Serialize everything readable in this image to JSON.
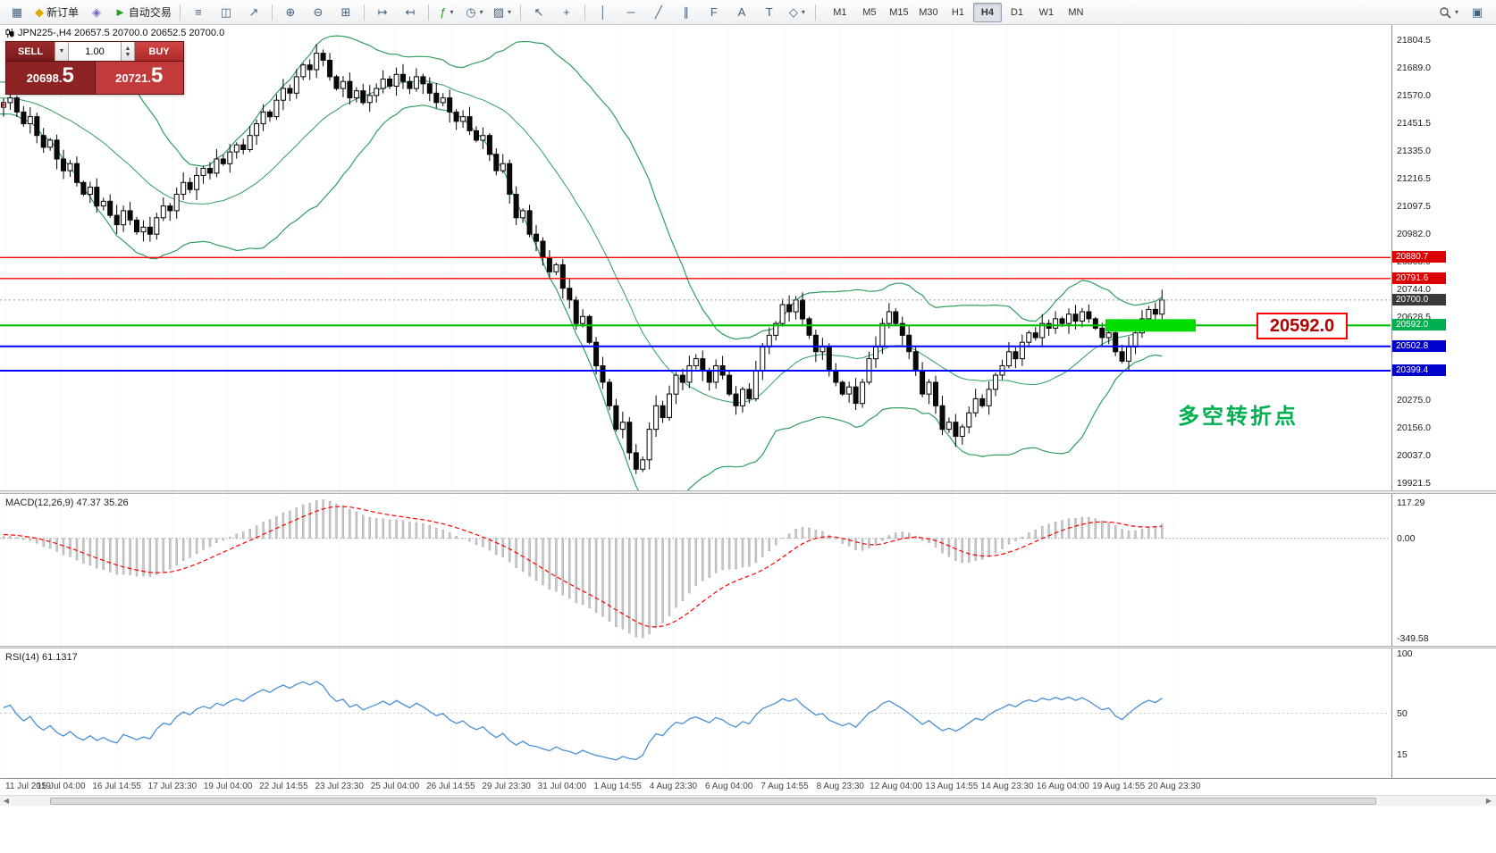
{
  "toolbar": {
    "items": [
      {
        "name": "new-chart-button",
        "glyph": "▦",
        "color": "#44617d"
      },
      {
        "name": "new-order-button",
        "glyph": "◆",
        "color": "#e0a800",
        "label": "新订单"
      },
      {
        "name": "metaeditor-button",
        "glyph": "◈",
        "color": "#7b5cc6"
      },
      {
        "name": "autotrading-button",
        "glyph": "►",
        "color": "#1fa11f",
        "label": "自动交易"
      },
      {
        "type": "sep"
      },
      {
        "name": "bar-chart-button",
        "glyph": "≡"
      },
      {
        "name": "candlestick-chart-button",
        "glyph": "◫"
      },
      {
        "name": "line-chart-button",
        "glyph": "↗"
      },
      {
        "type": "sep"
      },
      {
        "name": "zoom-in-button",
        "glyph": "⊕"
      },
      {
        "name": "zoom-out-button",
        "glyph": "⊖"
      },
      {
        "name": "tile-windows-button",
        "glyph": "⊞"
      },
      {
        "type": "sep"
      },
      {
        "name": "auto-scroll-button",
        "glyph": "↦"
      },
      {
        "name": "chart-shift-button",
        "glyph": "↤"
      },
      {
        "type": "sep"
      },
      {
        "name": "indicators-button",
        "glyph": "ƒ",
        "color": "#1fa11f",
        "caret": true
      },
      {
        "name": "periods-button",
        "glyph": "◷",
        "caret": true
      },
      {
        "name": "templates-button",
        "glyph": "▨",
        "caret": true
      },
      {
        "type": "sep"
      },
      {
        "name": "cursor-button",
        "glyph": "↖"
      },
      {
        "name": "crosshair-button",
        "glyph": "+"
      },
      {
        "type": "sep"
      },
      {
        "name": "vertical-line-button",
        "glyph": "│"
      },
      {
        "name": "horizontal-line-button",
        "glyph": "─"
      },
      {
        "name": "trendline-button",
        "glyph": "╱"
      },
      {
        "name": "channel-button",
        "glyph": "∥"
      },
      {
        "name": "fibonacci-button",
        "glyph": "F"
      },
      {
        "name": "text-button",
        "glyph": "A"
      },
      {
        "name": "text-label-button",
        "glyph": "T"
      },
      {
        "name": "shapes-button",
        "glyph": "◇",
        "caret": true
      },
      {
        "type": "sep"
      }
    ],
    "timeframes": [
      "M1",
      "M5",
      "M15",
      "M30",
      "H1",
      "H4",
      "D1",
      "W1",
      "MN"
    ],
    "active_timeframe": "H4"
  },
  "chart": {
    "header": "JPN225-,H4  20657.5 20700.0 20652.5 20700.0",
    "symbol": "JPN225-",
    "period": "H4",
    "trade_panel": {
      "sell_label": "SELL",
      "buy_label": "BUY",
      "volume": "1.00",
      "sell_price": "20698.5",
      "buy_price": "20721.5",
      "sell_price_main": "20698",
      "sell_price_pip": "5",
      "buy_price_main": "20721",
      "buy_price_pip": "5"
    },
    "annotation": {
      "text": "多空转折点",
      "color": "#00b050"
    },
    "big_price_label": {
      "text": "20592.0",
      "color": "#b00000",
      "border": "#ff0000"
    },
    "macd_header": "MACD(12,26,9) 47.37 35.26",
    "rsi_header": "RSI(14) 61.1317",
    "axis": {
      "price_ticks": [
        21804.5,
        21689.0,
        21570.0,
        21451.5,
        21335.0,
        21216.5,
        21097.5,
        20982.0,
        20863.0,
        20744.0,
        20628.5,
        20275.0,
        20156.0,
        20037.0,
        19921.5
      ],
      "price_badges": [
        {
          "value": 20880.7,
          "label": "20880.7",
          "color": "#dd0000"
        },
        {
          "value": 20791.6,
          "label": "20791.6",
          "color": "#dd0000"
        },
        {
          "value": 20700.0,
          "label": "20700.0",
          "color": "#3a3a3a"
        },
        {
          "value": 20592.0,
          "label": "20592.0",
          "color": "#00b050"
        },
        {
          "value": 20502.8,
          "label": "20502.8",
          "color": "#0000cc"
        },
        {
          "value": 20399.4,
          "label": "20399.4",
          "color": "#0000cc"
        }
      ]
    }
  },
  "chart_data": [
    {
      "type": "candlestick",
      "symbol": "JPN225-",
      "timeframe": "H4",
      "note": "closes sampled from pixels; open = previous close",
      "lead_in": 26,
      "y_range": [
        19890,
        21870
      ],
      "closes": [
        21450,
        21480,
        21520,
        21490,
        21530,
        21560,
        21540,
        21580,
        21550,
        21590,
        21610,
        21580,
        21600,
        21630,
        21600,
        21570,
        21540,
        21560,
        21520,
        21540,
        21500,
        21520,
        21560,
        21530,
        21550,
        21520,
        21540,
        21560,
        21500,
        21450,
        21480,
        21400,
        21350,
        21380,
        21300,
        21250,
        21280,
        21200,
        21150,
        21180,
        21100,
        21120,
        21060,
        21020,
        21080,
        21040,
        20990,
        21010,
        20980,
        21050,
        21100,
        21080,
        21150,
        21200,
        21170,
        21230,
        21260,
        21240,
        21300,
        21280,
        21330,
        21360,
        21340,
        21400,
        21450,
        21500,
        21480,
        21550,
        21600,
        21580,
        21650,
        21700,
        21680,
        21750,
        21720,
        21650,
        21600,
        21630,
        21560,
        21590,
        21540,
        21570,
        21600,
        21640,
        21610,
        21660,
        21630,
        21600,
        21650,
        21620,
        21580,
        21540,
        21560,
        21500,
        21460,
        21480,
        21420,
        21380,
        21400,
        21320,
        21250,
        21280,
        21150,
        21050,
        21080,
        20980,
        20950,
        20880,
        20820,
        20850,
        20750,
        20700,
        20600,
        20630,
        20520,
        20420,
        20350,
        20250,
        20150,
        20180,
        20050,
        19980,
        20020,
        20150,
        20250,
        20200,
        20300,
        20380,
        20350,
        20420,
        20450,
        20400,
        20350,
        20420,
        20380,
        20300,
        20250,
        20320,
        20280,
        20400,
        20500,
        20550,
        20600,
        20680,
        20650,
        20700,
        20620,
        20550,
        20480,
        20500,
        20400,
        20350,
        20300,
        20330,
        20260,
        20350,
        20450,
        20500,
        20600,
        20650,
        20600,
        20550,
        20480,
        20400,
        20300,
        20350,
        20250,
        20150,
        20180,
        20120,
        20160,
        20220,
        20280,
        20250,
        20320,
        20380,
        20420,
        20480,
        20450,
        20520,
        20560,
        20540,
        20600,
        20580,
        20620,
        20600,
        20640,
        20610,
        20650,
        20620,
        20580,
        20540,
        20560,
        20480,
        20440,
        20500,
        20560,
        20620,
        20660,
        20640,
        20700
      ],
      "overlays": [
        {
          "name": "Bollinger Bands",
          "period": 20,
          "deviation": 2,
          "color": "#2f9e5f"
        }
      ],
      "h_lines": [
        {
          "value": 20880.7,
          "color": "#ff0000",
          "width": 1.4,
          "style": "solid"
        },
        {
          "value": 20791.6,
          "color": "#ff0000",
          "width": 1.4,
          "style": "solid"
        },
        {
          "value": 20592.0,
          "color": "#00c000",
          "width": 2.2,
          "style": "solid"
        },
        {
          "value": 20502.8,
          "color": "#0000ff",
          "width": 2,
          "style": "solid"
        },
        {
          "value": 20399.4,
          "color": "#0000ff",
          "width": 2,
          "style": "solid"
        },
        {
          "value": 20700.0,
          "color": "#999999",
          "width": 1,
          "style": "dot"
        }
      ],
      "highlight": {
        "value": 20592.0,
        "x": 1237,
        "w": 101,
        "color": "#00dd00"
      },
      "x_labels": [
        "11 Jul 2019",
        "15 Jul 04:00",
        "16 Jul 14:55",
        "17 Jul 23:30",
        "19 Jul 04:00",
        "22 Jul 14:55",
        "23 Jul 23:30",
        "25 Jul 04:00",
        "26 Jul 14:55",
        "29 Jul 23:30",
        "31 Jul 04:00",
        "1 Aug 14:55",
        "4 Aug 23:30",
        "6 Aug 04:00",
        "7 Aug 14:55",
        "8 Aug 23:30",
        "12 Aug 04:00",
        "13 Aug 14:55",
        "14 Aug 23:30",
        "16 Aug 04:00",
        "19 Aug 14:55",
        "20 Aug 23:30"
      ]
    },
    {
      "type": "bar",
      "name": "MACD(12,26,9)",
      "values_shown": [
        47.37,
        35.26
      ],
      "y_ticks": [
        117.29,
        0,
        -349.58
      ],
      "derived_from": "closes",
      "histogram_color": "#c8c8c8",
      "signal_color": "#ff0000"
    },
    {
      "type": "line",
      "name": "RSI(14)",
      "value_shown": 61.1317,
      "y_ticks": [
        100,
        50,
        15
      ],
      "derived_from": "closes",
      "line_color": "#4a8fd4"
    }
  ]
}
